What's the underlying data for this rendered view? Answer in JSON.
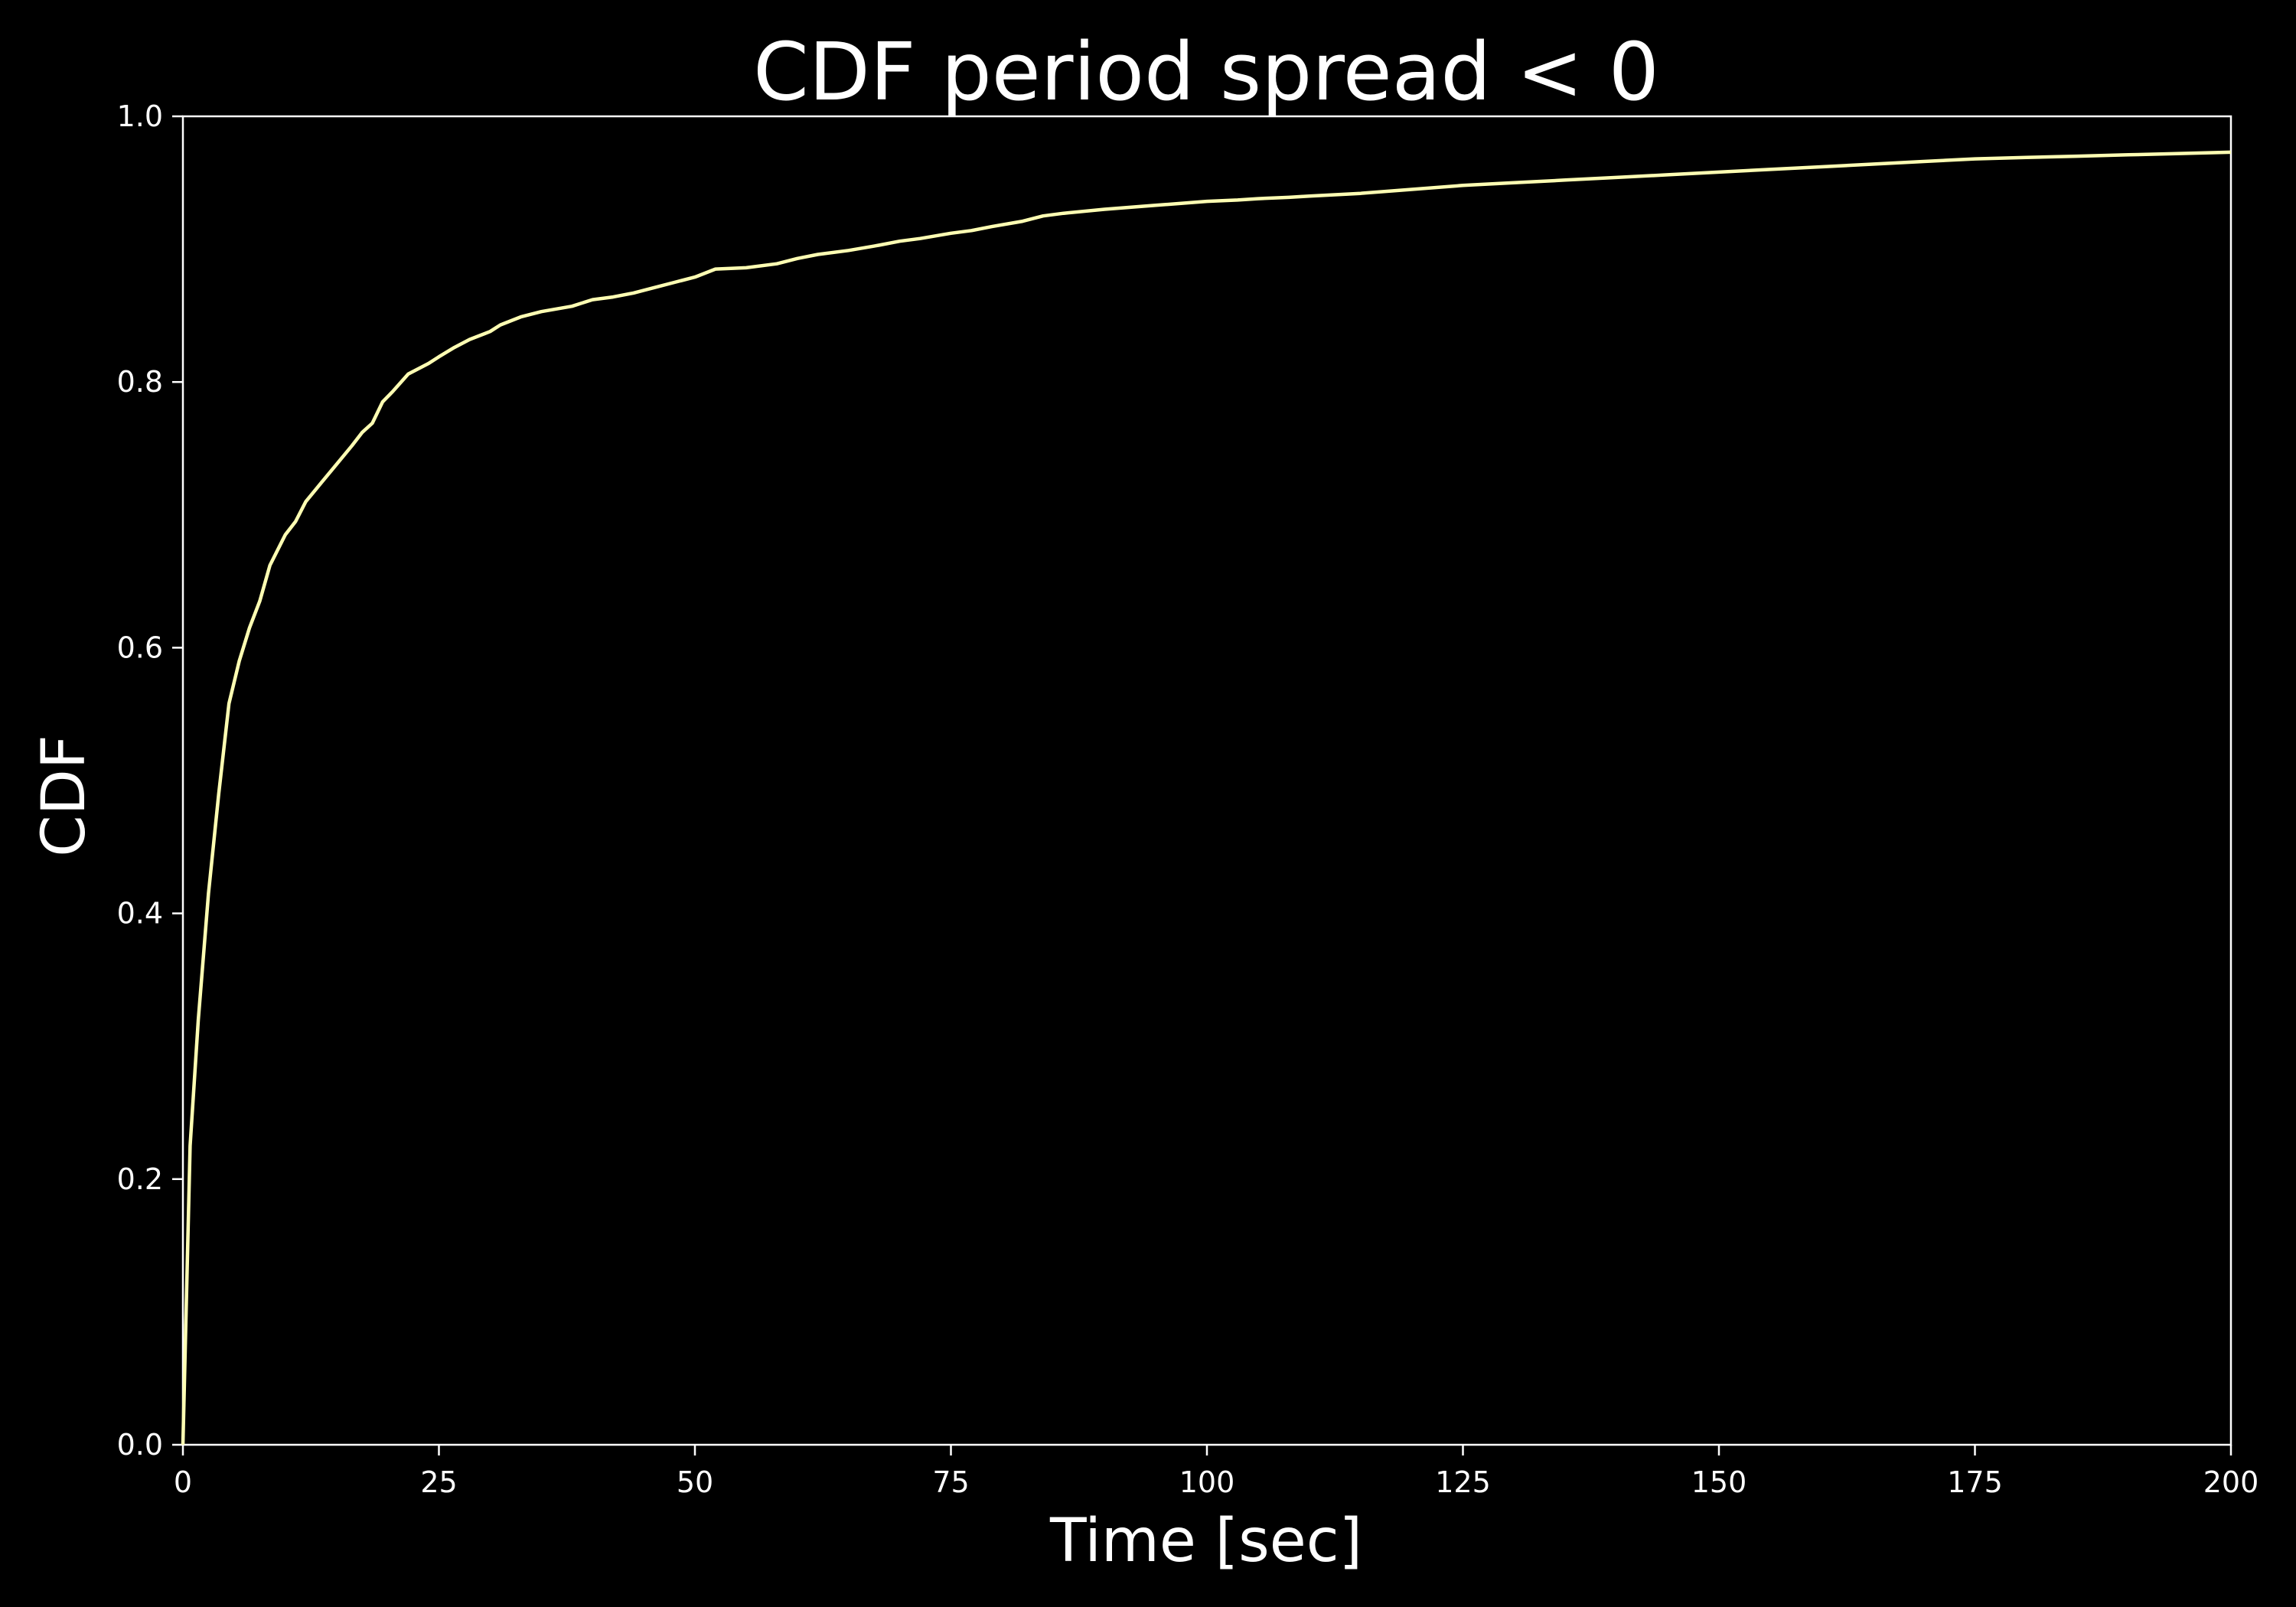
{
  "chart_data": {
    "type": "line",
    "title": "CDF period spread < 0",
    "xlabel": "Time [sec]",
    "ylabel": "CDF",
    "xlim": [
      0,
      200
    ],
    "ylim": [
      0,
      1
    ],
    "x_ticks": [
      "0",
      "25",
      "50",
      "75",
      "100",
      "125",
      "150",
      "175",
      "200"
    ],
    "y_ticks": [
      "0.0",
      "0.2",
      "0.4",
      "0.6",
      "0.8",
      "1.0"
    ],
    "grid": false,
    "colors": {
      "background": "#000000",
      "axes": "#ffffff",
      "text": "#ffffff",
      "line": "#ffffb3"
    },
    "series": [
      {
        "x": [
          0,
          0.7,
          1.5,
          2.5,
          3.5,
          4.5,
          5.5,
          6.5,
          7.5,
          8.5,
          10,
          11,
          12,
          13.5,
          15,
          16.5,
          17.5,
          18.5,
          19.5,
          20.5,
          22,
          24,
          25,
          26.5,
          28,
          30,
          31,
          33,
          35,
          38,
          40,
          42,
          44,
          46,
          48,
          50,
          52,
          55,
          58,
          60,
          62,
          65,
          68,
          70,
          72,
          75,
          77,
          79,
          82,
          84,
          86,
          90,
          95,
          100,
          103,
          105,
          108,
          110,
          115,
          120,
          125,
          130,
          135,
          140,
          145,
          150,
          155,
          160,
          165,
          170,
          175,
          180,
          185,
          190,
          195,
          200
        ],
        "y": [
          0.0,
          0.225,
          0.32,
          0.415,
          0.49,
          0.558,
          0.59,
          0.615,
          0.635,
          0.662,
          0.685,
          0.695,
          0.71,
          0.724,
          0.738,
          0.752,
          0.762,
          0.769,
          0.785,
          0.793,
          0.806,
          0.814,
          0.819,
          0.826,
          0.832,
          0.838,
          0.843,
          0.849,
          0.853,
          0.857,
          0.862,
          0.864,
          0.867,
          0.871,
          0.875,
          0.879,
          0.885,
          0.886,
          0.889,
          0.893,
          0.896,
          0.899,
          0.903,
          0.906,
          0.908,
          0.912,
          0.914,
          0.917,
          0.921,
          0.925,
          0.927,
          0.93,
          0.933,
          0.936,
          0.937,
          0.938,
          0.939,
          0.94,
          0.942,
          0.945,
          0.948,
          0.95,
          0.952,
          0.954,
          0.956,
          0.958,
          0.96,
          0.962,
          0.964,
          0.966,
          0.968,
          0.969,
          0.97,
          0.971,
          0.972,
          0.973
        ]
      }
    ]
  }
}
